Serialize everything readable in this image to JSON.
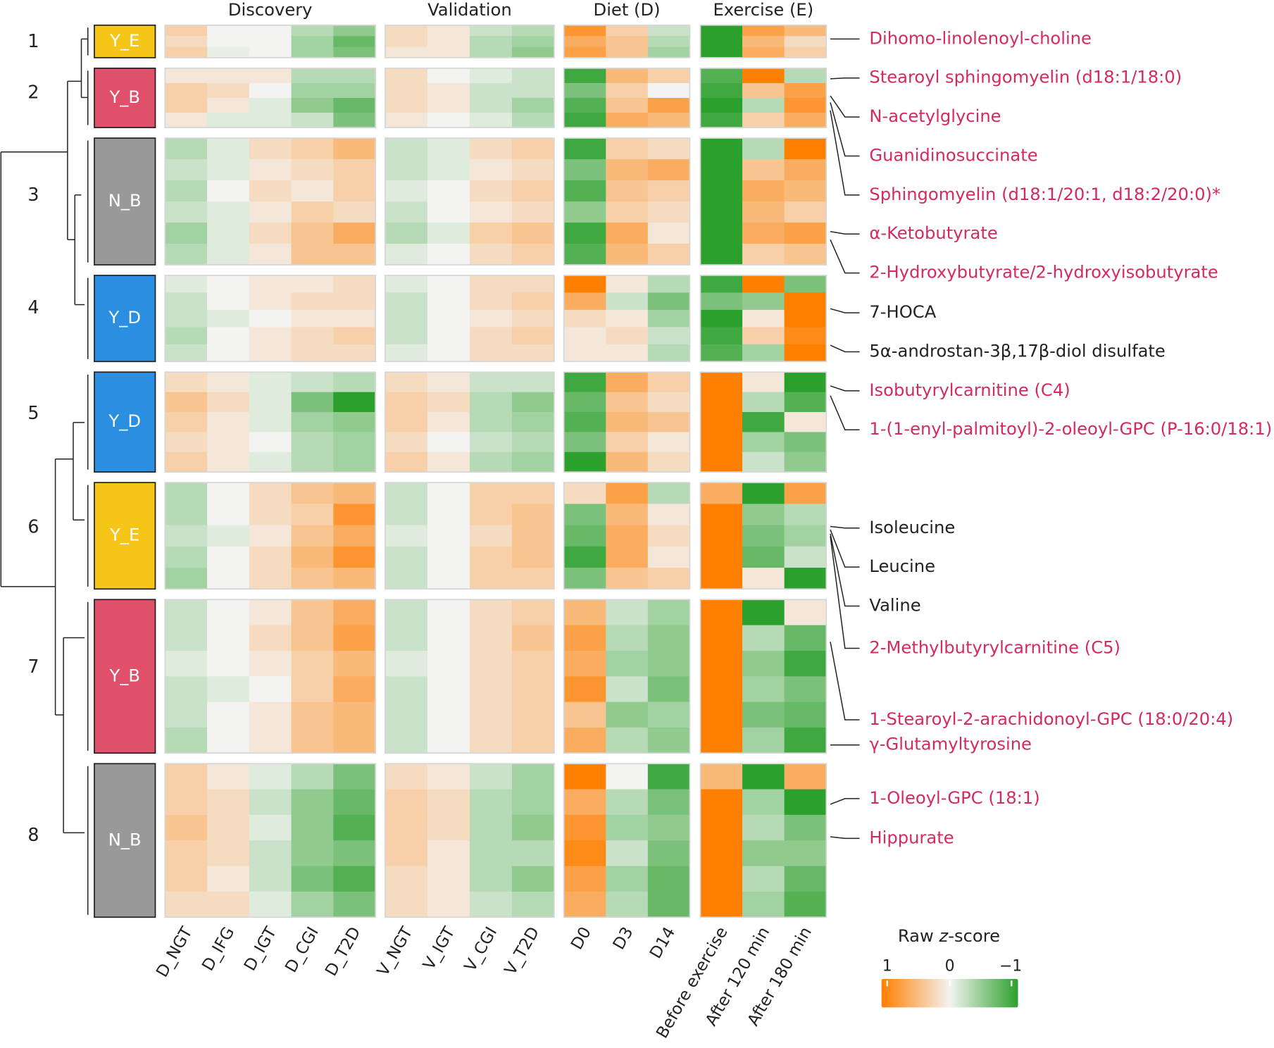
{
  "chart_data": {
    "type": "heatmap",
    "title": "",
    "color_scale": {
      "title_prefix": "Raw ",
      "title_italic": "z",
      "title_suffix": "-score",
      "tick_labels": [
        "1",
        "0",
        "−1"
      ],
      "range": [
        1,
        -1
      ],
      "high_color": "#ff7f00",
      "mid_color": "#f3f3f1",
      "low_color": "#2ca02c"
    },
    "column_groups": [
      {
        "title": "Discovery",
        "columns": [
          "D_NGT",
          "D_IFG",
          "D_IGT",
          "D_CGI",
          "D_T2D"
        ]
      },
      {
        "title": "Validation",
        "columns": [
          "V_NGT",
          "V_IGT",
          "V_CGI",
          "V_T2D"
        ]
      },
      {
        "title": "Diet (D)",
        "columns": [
          "D0",
          "D3",
          "D14"
        ]
      },
      {
        "title": "Exercise (E)",
        "columns": [
          "Before exercise",
          "After 120 min",
          "After 180 min"
        ]
      }
    ],
    "clusters": [
      {
        "number": "1",
        "group": "Y_E",
        "group_color": "#f5c518",
        "rows": [
          [
            0.3,
            0.0,
            0.0,
            -0.3,
            -0.5,
            0.2,
            0.1,
            -0.2,
            -0.3,
            0.8,
            0.3,
            -0.2,
            -1.0,
            0.7,
            0.5
          ],
          [
            0.2,
            0.0,
            0.0,
            -0.4,
            -0.7,
            0.2,
            0.1,
            -0.3,
            -0.4,
            0.6,
            0.4,
            -0.3,
            -1.0,
            0.5,
            0.2
          ],
          [
            0.3,
            -0.05,
            0.0,
            -0.4,
            -0.6,
            0.1,
            0.1,
            -0.3,
            -0.5,
            0.7,
            0.4,
            -0.4,
            -1.0,
            0.6,
            0.3
          ]
        ]
      },
      {
        "number": "2",
        "group": "Y_B",
        "group_color": "#e0506a",
        "rows": [
          [
            0.1,
            0.1,
            0.1,
            -0.3,
            -0.3,
            0.2,
            0.0,
            -0.1,
            -0.2,
            -0.9,
            0.5,
            0.3,
            -0.8,
            1.0,
            -0.3
          ],
          [
            0.3,
            0.2,
            0.0,
            -0.4,
            -0.4,
            0.2,
            0.1,
            -0.2,
            -0.2,
            -0.6,
            0.3,
            0.0,
            -0.9,
            0.4,
            0.7
          ],
          [
            0.3,
            0.1,
            -0.1,
            -0.5,
            -0.7,
            0.2,
            0.1,
            -0.2,
            -0.4,
            -0.8,
            0.4,
            0.7,
            -1.0,
            -0.3,
            0.8
          ],
          [
            0.1,
            -0.1,
            -0.1,
            -0.2,
            -0.6,
            0.1,
            0.0,
            -0.1,
            -0.3,
            -0.9,
            0.6,
            0.5,
            -0.9,
            0.3,
            0.6
          ]
        ]
      },
      {
        "number": "3",
        "group": "N_B",
        "group_color": "#999999",
        "rows": [
          [
            -0.3,
            -0.1,
            0.2,
            0.3,
            0.5,
            -0.2,
            -0.1,
            0.2,
            0.3,
            -0.9,
            0.3,
            0.2,
            -1.0,
            -0.3,
            1.0
          ],
          [
            -0.2,
            -0.1,
            0.1,
            0.2,
            0.3,
            -0.2,
            -0.1,
            0.1,
            0.2,
            -0.6,
            0.5,
            0.6,
            -1.0,
            0.4,
            0.6
          ],
          [
            -0.3,
            0.0,
            0.2,
            0.1,
            0.3,
            -0.1,
            0.0,
            0.2,
            0.3,
            -0.8,
            0.4,
            0.3,
            -1.0,
            0.6,
            0.5
          ],
          [
            -0.2,
            -0.1,
            0.1,
            0.3,
            0.2,
            -0.2,
            0.0,
            0.1,
            0.2,
            -0.5,
            0.3,
            0.2,
            -1.0,
            0.5,
            0.3
          ],
          [
            -0.4,
            -0.1,
            0.2,
            0.4,
            0.6,
            -0.3,
            -0.1,
            0.3,
            0.4,
            -0.9,
            0.6,
            0.1,
            -1.0,
            0.6,
            0.7
          ],
          [
            -0.3,
            -0.1,
            0.1,
            0.4,
            0.4,
            -0.1,
            0.0,
            0.2,
            0.3,
            -0.8,
            0.5,
            0.3,
            -1.0,
            0.3,
            0.4
          ]
        ]
      },
      {
        "number": "4",
        "group": "Y_D",
        "group_color": "#2a8fe0",
        "rows": [
          [
            -0.1,
            0.0,
            0.1,
            0.1,
            0.2,
            -0.1,
            0.0,
            0.2,
            0.2,
            1.0,
            0.1,
            -0.3,
            -0.9,
            1.0,
            -0.6
          ],
          [
            -0.2,
            0.0,
            0.1,
            0.2,
            0.2,
            -0.2,
            0.0,
            0.2,
            0.3,
            0.6,
            -0.2,
            -0.6,
            -0.6,
            -0.5,
            1.0
          ],
          [
            -0.2,
            -0.1,
            0.0,
            0.1,
            0.1,
            -0.2,
            0.0,
            0.1,
            0.2,
            0.2,
            0.1,
            -0.4,
            -1.0,
            0.1,
            1.0
          ],
          [
            -0.3,
            0.0,
            0.1,
            0.2,
            0.3,
            -0.2,
            0.0,
            0.2,
            0.3,
            0.1,
            0.2,
            -0.2,
            -0.9,
            0.3,
            0.9
          ],
          [
            -0.2,
            0.0,
            0.1,
            0.2,
            0.2,
            -0.1,
            0.0,
            0.2,
            0.2,
            0.1,
            0.1,
            -0.3,
            -0.8,
            -0.4,
            1.0
          ]
        ]
      },
      {
        "number": "5",
        "group": "Y_D",
        "group_color": "#2a8fe0",
        "rows": [
          [
            0.2,
            0.1,
            -0.1,
            -0.2,
            -0.3,
            0.2,
            0.1,
            -0.2,
            -0.2,
            -0.9,
            0.6,
            0.3,
            1.0,
            0.1,
            -1.0
          ],
          [
            0.4,
            0.2,
            -0.1,
            -0.6,
            -1.0,
            0.3,
            0.2,
            -0.3,
            -0.5,
            -0.7,
            0.4,
            0.2,
            1.0,
            -0.3,
            -0.8
          ],
          [
            0.3,
            0.1,
            -0.1,
            -0.4,
            -0.5,
            0.3,
            0.1,
            -0.3,
            -0.4,
            -0.8,
            0.5,
            0.4,
            1.0,
            -0.9,
            0.1
          ],
          [
            0.2,
            0.1,
            0.0,
            -0.3,
            -0.4,
            0.2,
            0.0,
            -0.2,
            -0.3,
            -0.6,
            0.3,
            0.1,
            1.0,
            -0.4,
            -0.6
          ],
          [
            0.3,
            0.1,
            -0.1,
            -0.3,
            -0.4,
            0.3,
            0.1,
            -0.3,
            -0.4,
            -1.0,
            0.5,
            0.2,
            1.0,
            -0.2,
            -0.5
          ]
        ]
      },
      {
        "number": "6",
        "group": "Y_E",
        "group_color": "#f5c518",
        "rows": [
          [
            -0.3,
            0.0,
            0.2,
            0.4,
            0.5,
            -0.2,
            0.0,
            0.3,
            0.3,
            0.2,
            0.7,
            -0.3,
            0.6,
            -1.0,
            0.7
          ],
          [
            -0.3,
            0.0,
            0.2,
            0.3,
            0.8,
            -0.2,
            0.0,
            0.3,
            0.4,
            -0.6,
            0.5,
            0.1,
            1.0,
            -0.5,
            -0.3
          ],
          [
            -0.2,
            -0.1,
            0.1,
            0.4,
            0.6,
            -0.1,
            0.0,
            0.2,
            0.4,
            -0.7,
            0.6,
            0.2,
            1.0,
            -0.6,
            -0.4
          ],
          [
            -0.3,
            0.0,
            0.2,
            0.5,
            0.8,
            -0.2,
            0.0,
            0.3,
            0.4,
            -0.9,
            0.6,
            0.1,
            1.0,
            -0.7,
            -0.2
          ],
          [
            -0.4,
            0.0,
            0.2,
            0.4,
            0.5,
            -0.2,
            0.0,
            0.3,
            0.3,
            -0.6,
            0.4,
            0.3,
            1.0,
            0.1,
            -1.0
          ]
        ]
      },
      {
        "number": "7",
        "group": "Y_B",
        "group_color": "#e0506a",
        "rows": [
          [
            -0.2,
            0.0,
            0.1,
            0.4,
            0.6,
            -0.2,
            0.0,
            0.2,
            0.3,
            0.5,
            -0.2,
            -0.4,
            1.0,
            -1.0,
            0.1
          ],
          [
            -0.2,
            0.0,
            0.2,
            0.4,
            0.7,
            -0.2,
            0.0,
            0.2,
            0.4,
            0.7,
            -0.3,
            -0.5,
            1.0,
            -0.3,
            -0.7
          ],
          [
            -0.1,
            0.0,
            0.1,
            0.3,
            0.5,
            -0.1,
            0.0,
            0.2,
            0.3,
            0.6,
            -0.4,
            -0.5,
            1.0,
            -0.5,
            -0.9
          ],
          [
            -0.2,
            -0.1,
            0.0,
            0.3,
            0.6,
            -0.2,
            0.0,
            0.2,
            0.3,
            0.8,
            -0.2,
            -0.6,
            1.0,
            -0.4,
            -0.6
          ],
          [
            -0.2,
            0.0,
            0.1,
            0.4,
            0.5,
            -0.2,
            0.0,
            0.2,
            0.3,
            0.4,
            -0.5,
            -0.4,
            1.0,
            -0.6,
            -0.7
          ],
          [
            -0.3,
            0.0,
            0.1,
            0.4,
            0.5,
            -0.2,
            0.0,
            0.2,
            0.3,
            0.6,
            -0.3,
            -0.5,
            1.0,
            -0.4,
            -0.9
          ]
        ]
      },
      {
        "number": "8",
        "group": "N_B",
        "group_color": "#999999",
        "rows": [
          [
            0.3,
            0.1,
            -0.1,
            -0.3,
            -0.6,
            0.2,
            0.1,
            -0.2,
            -0.4,
            1.0,
            0.0,
            -0.9,
            0.5,
            -1.0,
            0.6
          ],
          [
            0.3,
            0.2,
            -0.2,
            -0.5,
            -0.7,
            0.3,
            0.2,
            -0.3,
            -0.4,
            0.6,
            -0.3,
            -0.6,
            1.0,
            -0.4,
            -1.0
          ],
          [
            0.4,
            0.2,
            -0.1,
            -0.5,
            -0.8,
            0.3,
            0.2,
            -0.3,
            -0.5,
            0.8,
            -0.4,
            -0.5,
            1.0,
            -0.3,
            -0.6
          ],
          [
            0.3,
            0.2,
            -0.2,
            -0.5,
            -0.6,
            0.3,
            0.1,
            -0.3,
            -0.3,
            0.9,
            -0.2,
            -0.6,
            1.0,
            -0.5,
            -0.5
          ],
          [
            0.3,
            0.1,
            -0.2,
            -0.6,
            -0.8,
            0.2,
            0.1,
            -0.3,
            -0.5,
            0.7,
            -0.4,
            -0.7,
            1.0,
            -0.3,
            -0.7
          ],
          [
            0.2,
            0.2,
            -0.1,
            -0.4,
            -0.6,
            0.2,
            0.1,
            -0.2,
            -0.3,
            0.6,
            -0.3,
            -0.7,
            1.0,
            -0.4,
            -0.8
          ]
        ]
      }
    ],
    "annotations": [
      {
        "label": "Dihomo-linolenoyl-choline",
        "color": "#d42a5e"
      },
      {
        "label": "Stearoyl sphingomyelin (d18:1/18:0)",
        "color": "#d42a5e"
      },
      {
        "label": "N-acetylglycine",
        "color": "#d42a5e"
      },
      {
        "label": "Guanidinosuccinate",
        "color": "#d42a5e"
      },
      {
        "label": "Sphingomyelin (d18:1/20:1, d18:2/20:0)*",
        "color": "#d42a5e"
      },
      {
        "label": "α-Ketobutyrate",
        "color": "#d42a5e"
      },
      {
        "label": "2-Hydroxybutyrate/2-hydroxyisobutyrate",
        "color": "#d42a5e"
      },
      {
        "label": "7-HOCA",
        "color": "#222222"
      },
      {
        "label": "5α-androstan-3β,17β-diol disulfate",
        "color": "#222222"
      },
      {
        "label": "Isobutyrylcarnitine (C4)",
        "color": "#d42a5e"
      },
      {
        "label": "1-(1-enyl-palmitoyl)-2-oleoyl-GPC (P-16:0/18:1)",
        "color": "#d42a5e"
      },
      {
        "label": "Isoleucine",
        "color": "#222222"
      },
      {
        "label": "Leucine",
        "color": "#222222"
      },
      {
        "label": "Valine",
        "color": "#222222"
      },
      {
        "label": "2-Methylbutyrylcarnitine (C5)",
        "color": "#d42a5e"
      },
      {
        "label": "1-Stearoyl-2-arachidonoyl-GPC (18:0/20:4)",
        "color": "#d42a5e"
      },
      {
        "label": "γ-Glutamyltyrosine",
        "color": "#d42a5e"
      },
      {
        "label": "1-Oleoyl-GPC (18:1)",
        "color": "#d42a5e"
      },
      {
        "label": "Hippurate",
        "color": "#d42a5e"
      }
    ]
  }
}
